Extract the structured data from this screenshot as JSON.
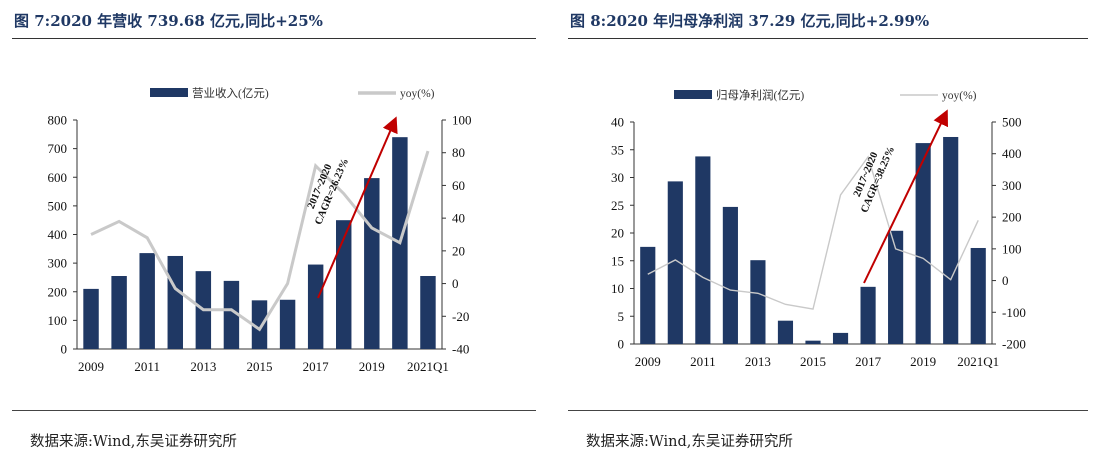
{
  "charts": [
    {
      "id": "left",
      "title": "图 7:2020 年营收 739.68 亿元,同比+25%",
      "source": "数据来源:Wind,东吴证券研究所",
      "colors": {
        "bar": "#1f3864",
        "line": "#c9c9c9",
        "arrow": "#c00000"
      },
      "annotation": {
        "line1": "2017~2020",
        "line2": "CAGR=26.23%"
      },
      "chart_data": {
        "type": "bar",
        "categories": [
          "2009",
          "2010",
          "2011",
          "2012",
          "2013",
          "2014",
          "2015",
          "2016",
          "2017",
          "2018",
          "2019",
          "2020",
          "2021Q1"
        ],
        "x_tick_labels": [
          "2009",
          "2011",
          "2013",
          "2015",
          "2017",
          "2019",
          "2021Q1"
        ],
        "series": [
          {
            "name": "营业收入(亿元)",
            "axis": "left",
            "kind": "bar",
            "values": [
              210,
              255,
              335,
              325,
              272,
              238,
              170,
              172,
              295,
              450,
              597,
              740,
              255
            ]
          },
          {
            "name": "yoy(%)",
            "axis": "right",
            "kind": "line",
            "values": [
              30,
              38,
              28,
              -3,
              -16,
              -16,
              -28,
              0,
              72,
              55,
              34,
              25,
              81
            ]
          }
        ],
        "ylim_left": [
          0,
          800
        ],
        "yticks_left": [
          0,
          100,
          200,
          300,
          400,
          500,
          600,
          700,
          800
        ],
        "ylim_right": [
          -40,
          100
        ],
        "yticks_right": [
          -40,
          -20,
          0,
          20,
          40,
          60,
          80,
          100
        ],
        "legend": "top"
      }
    },
    {
      "id": "right",
      "title": "图 8:2020 年归母净利润 37.29 亿元,同比+2.99%",
      "source": "数据来源:Wind,东吴证券研究所",
      "colors": {
        "bar": "#1f3864",
        "line": "#c9c9c9",
        "arrow": "#c00000"
      },
      "annotation": {
        "line1": "2017~2020",
        "line2": "CAGR=38.25%"
      },
      "chart_data": {
        "type": "bar",
        "categories": [
          "2009",
          "2010",
          "2011",
          "2012",
          "2013",
          "2014",
          "2015",
          "2016",
          "2017",
          "2018",
          "2019",
          "2020",
          "2021Q1"
        ],
        "x_tick_labels": [
          "2009",
          "2011",
          "2013",
          "2015",
          "2017",
          "2019",
          "2021Q1"
        ],
        "series": [
          {
            "name": "归母净利润(亿元)",
            "axis": "left",
            "kind": "bar",
            "values": [
              17.5,
              29.3,
              33.8,
              24.7,
              15.1,
              4.2,
              0.6,
              2.0,
              10.3,
              20.4,
              36.2,
              37.3,
              17.3
            ]
          },
          {
            "name": "yoy(%)",
            "axis": "right",
            "kind": "line",
            "values": [
              20,
              65,
              10,
              -30,
              -40,
              -75,
              -90,
              270,
              390,
              100,
              70,
              3,
              190
            ]
          }
        ],
        "ylim_left": [
          0,
          40
        ],
        "yticks_left": [
          0,
          5,
          10,
          15,
          20,
          25,
          30,
          35,
          40
        ],
        "ylim_right": [
          -200,
          500
        ],
        "yticks_right": [
          -200,
          -100,
          0,
          100,
          200,
          300,
          400,
          500
        ],
        "legend": "top"
      }
    }
  ]
}
